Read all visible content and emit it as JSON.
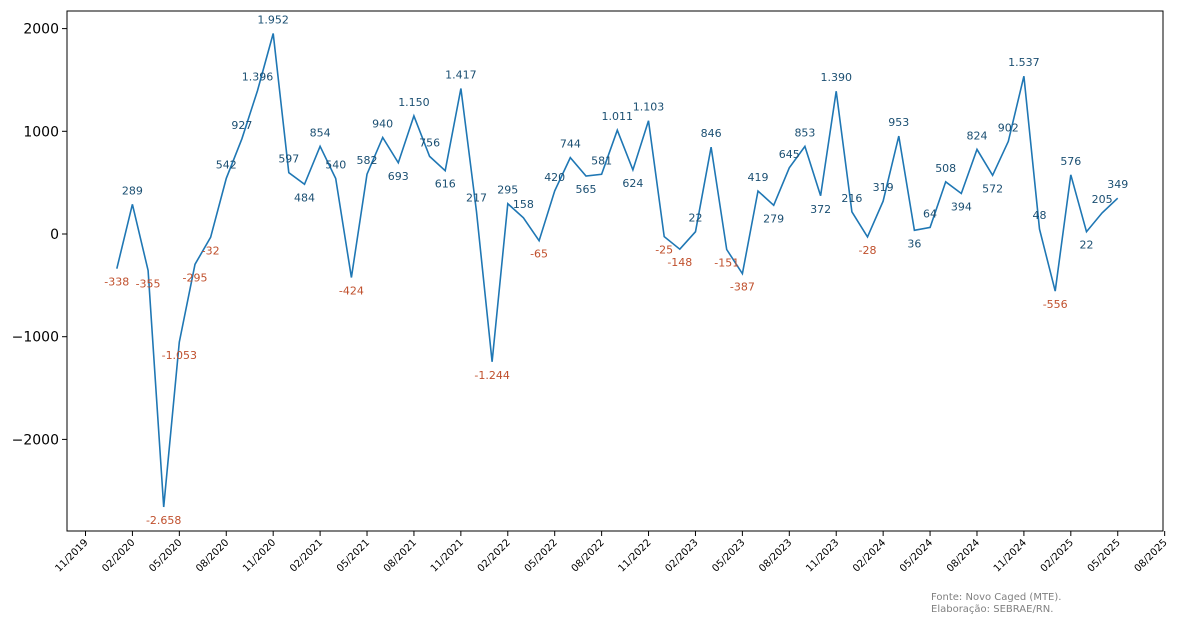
{
  "chart_data": {
    "type": "line",
    "series": [
      {
        "x": [
          "2020-01",
          "2020-02",
          "2020-03",
          "2020-04",
          "2020-05",
          "2020-06",
          "2020-07",
          "2020-08",
          "2020-09",
          "2020-10",
          "2020-11",
          "2020-12",
          "2021-01",
          "2021-02",
          "2021-03",
          "2021-04",
          "2021-05",
          "2021-06",
          "2021-07",
          "2021-08",
          "2021-09",
          "2021-10",
          "2021-11",
          "2021-12",
          "2022-01",
          "2022-02",
          "2022-03",
          "2022-04",
          "2022-05",
          "2022-06",
          "2022-07",
          "2022-08",
          "2022-09",
          "2022-10",
          "2022-11",
          "2022-12",
          "2023-01",
          "2023-02",
          "2023-03",
          "2023-04",
          "2023-05",
          "2023-06",
          "2023-07",
          "2023-08",
          "2023-09",
          "2023-10",
          "2023-11",
          "2023-12",
          "2024-01",
          "2024-02",
          "2024-03",
          "2024-04",
          "2024-05",
          "2024-06",
          "2024-07",
          "2024-08",
          "2024-09",
          "2024-10",
          "2024-11",
          "2024-12",
          "2025-01",
          "2025-02",
          "2025-03",
          "2025-04",
          "2025-05"
        ],
        "values": [
          -338,
          289,
          -355,
          -2658,
          -1053,
          -295,
          -32,
          542,
          927,
          1396,
          1952,
          597,
          484,
          854,
          540,
          -424,
          582,
          940,
          693,
          1150,
          756,
          616,
          1417,
          217,
          -1244,
          295,
          158,
          -65,
          420,
          744,
          565,
          581,
          1011,
          624,
          1103,
          -25,
          -148,
          22,
          846,
          -151,
          -387,
          419,
          279,
          645,
          853,
          372,
          1390,
          216,
          -28,
          319,
          953,
          36,
          64,
          508,
          394,
          824,
          572,
          902,
          1537,
          48,
          -556,
          576,
          22,
          205,
          349
        ],
        "labels": [
          "-338",
          "289",
          "-355",
          "-2.658",
          "-1.053",
          "-295",
          "-32",
          "542",
          "927",
          "1.396",
          "1.952",
          "597",
          "484",
          "854",
          "540",
          "-424",
          "582",
          "940",
          "693",
          "1.150",
          "756",
          "616",
          "1.417",
          "217",
          "-1.244",
          "295",
          "158",
          "-65",
          "420",
          "744",
          "565",
          "581",
          "1.011",
          "624",
          "1.103",
          "-25",
          "-148",
          "22",
          "846",
          "-151",
          "-387",
          "419",
          "279",
          "645",
          "853",
          "372",
          "1.390",
          "216",
          "-28",
          "319",
          "953",
          "36",
          "64",
          "508",
          "394",
          "824",
          "572",
          "902",
          "1.537",
          "48",
          "-556",
          "576",
          "22",
          "205",
          "349"
        ],
        "color": "#1f77b4"
      }
    ],
    "label_color_positive": "#1b4f72",
    "label_color_negative": "#c0502d",
    "ylim": [
      -2900,
      2200
    ],
    "yticks": [
      2000,
      1000,
      0,
      -1000,
      -2000
    ],
    "ytick_labels": [
      "2000",
      "1000",
      "0",
      "−1000",
      "−2000"
    ],
    "xticks": [
      "2019-11",
      "2020-02",
      "2020-05",
      "2020-08",
      "2020-11",
      "2021-02",
      "2021-05",
      "2021-08",
      "2021-11",
      "2022-02",
      "2022-05",
      "2022-08",
      "2022-11",
      "2023-02",
      "2023-05",
      "2023-08",
      "2023-11",
      "2024-02",
      "2024-05",
      "2024-08",
      "2024-11",
      "2025-02",
      "2025-05",
      "2025-08"
    ],
    "xtick_labels": [
      "11/2019",
      "02/2020",
      "05/2020",
      "08/2020",
      "11/2020",
      "02/2021",
      "05/2021",
      "08/2021",
      "11/2021",
      "02/2022",
      "05/2022",
      "08/2022",
      "11/2022",
      "02/2023",
      "05/2023",
      "08/2023",
      "11/2023",
      "02/2024",
      "05/2024",
      "08/2024",
      "11/2024",
      "02/2025",
      "05/2025",
      "08/2025"
    ],
    "grid": false,
    "legend": "none"
  },
  "source": {
    "line1": "Fonte: Novo Caged (MTE).",
    "line2": "Elaboração: SEBRAE/RN."
  }
}
